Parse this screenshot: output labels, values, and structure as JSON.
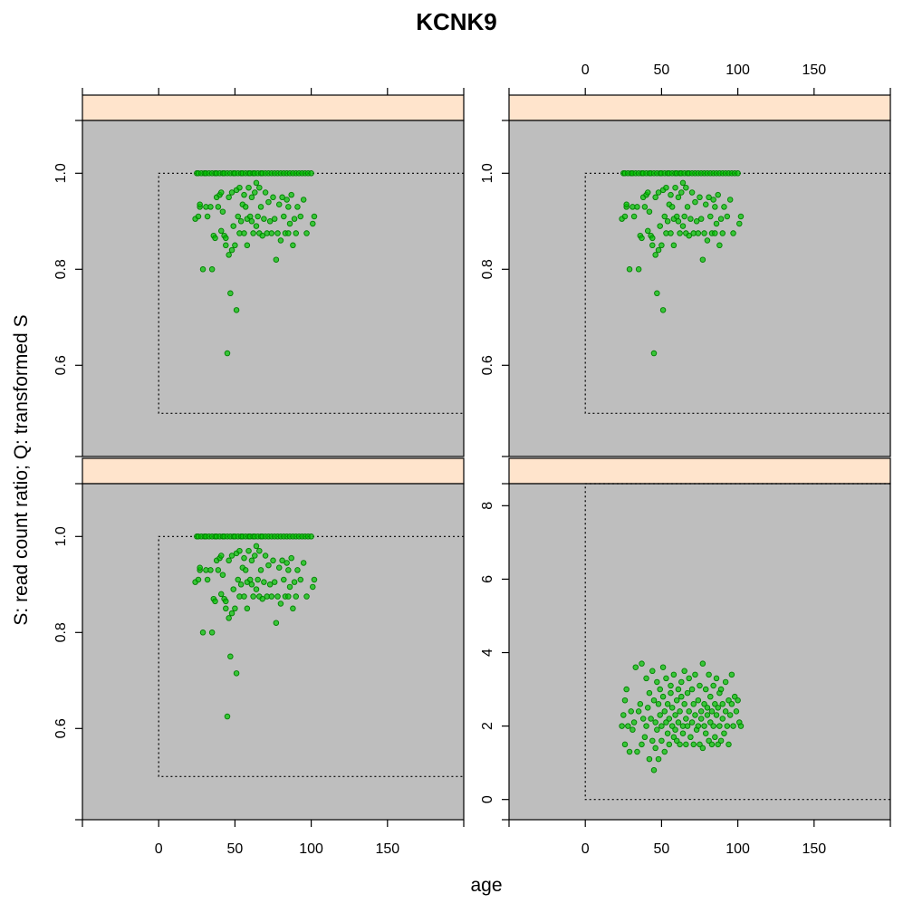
{
  "chart_data": {
    "type": "scatter",
    "title": "KCNK9",
    "xlabel": "age",
    "ylabel": "S: read count ratio;  Q: transformed S",
    "layout": "2x2 lattice",
    "xlim": [
      -50,
      200
    ],
    "x_ticks": [
      "0",
      "50",
      "100",
      "150"
    ],
    "strip_color": "#ffe4cc",
    "panel_background": "#bebebe",
    "point_color": "#00c800",
    "point_edge_color": "#008000",
    "grid": false,
    "reference_box": "dotted",
    "panels": [
      {
        "position": "top-left",
        "ylim": [
          0.41,
          1.11
        ],
        "y_ticks": [
          "0.6",
          "0.8",
          "1.0"
        ],
        "ref_box": {
          "x": [
            0,
            200
          ],
          "y": [
            0.5,
            1.0
          ]
        },
        "points": [
          [
            24,
            0.905
          ],
          [
            25,
            1.0
          ],
          [
            26,
            1.0
          ],
          [
            26,
            0.91
          ],
          [
            27,
            0.93
          ],
          [
            27,
            0.935
          ],
          [
            28,
            1.0
          ],
          [
            29,
            0.8
          ],
          [
            30,
            1.0
          ],
          [
            31,
            1.0
          ],
          [
            31,
            0.93
          ],
          [
            32,
            0.91
          ],
          [
            33,
            1.0
          ],
          [
            34,
            0.93
          ],
          [
            35,
            0.8
          ],
          [
            35,
            1.0
          ],
          [
            36,
            0.87
          ],
          [
            37,
            0.865
          ],
          [
            37,
            1.0
          ],
          [
            38,
            0.95
          ],
          [
            38,
            1.0
          ],
          [
            39,
            0.93
          ],
          [
            40,
            1.0
          ],
          [
            40,
            0.955
          ],
          [
            41,
            0.96
          ],
          [
            41,
            0.88
          ],
          [
            42,
            1.0
          ],
          [
            42,
            0.92
          ],
          [
            43,
            0.87
          ],
          [
            43,
            1.0
          ],
          [
            44,
            0.85
          ],
          [
            44,
            0.865
          ],
          [
            45,
            1.0
          ],
          [
            45,
            0.625
          ],
          [
            46,
            0.95
          ],
          [
            46,
            0.83
          ],
          [
            47,
            0.75
          ],
          [
            47,
            1.0
          ],
          [
            48,
            0.84
          ],
          [
            48,
            0.96
          ],
          [
            49,
            1.0
          ],
          [
            49,
            0.89
          ],
          [
            50,
            0.85
          ],
          [
            50,
            1.0
          ],
          [
            51,
            0.715
          ],
          [
            51,
            0.965
          ],
          [
            52,
            0.91
          ],
          [
            52,
            1.0
          ],
          [
            53,
            0.97
          ],
          [
            53,
            0.875
          ],
          [
            54,
            1.0
          ],
          [
            54,
            0.9
          ],
          [
            55,
            0.935
          ],
          [
            55,
            1.0
          ],
          [
            56,
            0.875
          ],
          [
            56,
            0.955
          ],
          [
            57,
            1.0
          ],
          [
            57,
            0.93
          ],
          [
            58,
            0.85
          ],
          [
            58,
            0.905
          ],
          [
            59,
            1.0
          ],
          [
            59,
            0.97
          ],
          [
            60,
            0.91
          ],
          [
            60,
            1.0
          ],
          [
            61,
            0.9
          ],
          [
            61,
            0.95
          ],
          [
            62,
            1.0
          ],
          [
            62,
            0.875
          ],
          [
            63,
            0.96
          ],
          [
            63,
            1.0
          ],
          [
            64,
            0.98
          ],
          [
            64,
            0.89
          ],
          [
            65,
            1.0
          ],
          [
            65,
            0.91
          ],
          [
            66,
            0.875
          ],
          [
            66,
            0.97
          ],
          [
            67,
            1.0
          ],
          [
            67,
            0.93
          ],
          [
            68,
            0.87
          ],
          [
            68,
            1.0
          ],
          [
            69,
            0.905
          ],
          [
            70,
            1.0
          ],
          [
            70,
            0.96
          ],
          [
            71,
            0.875
          ],
          [
            72,
            1.0
          ],
          [
            72,
            0.94
          ],
          [
            73,
            0.9
          ],
          [
            74,
            1.0
          ],
          [
            74,
            0.875
          ],
          [
            75,
            0.95
          ],
          [
            76,
            1.0
          ],
          [
            76,
            0.905
          ],
          [
            77,
            0.82
          ],
          [
            78,
            1.0
          ],
          [
            78,
            0.875
          ],
          [
            79,
            0.935
          ],
          [
            80,
            1.0
          ],
          [
            80,
            0.86
          ],
          [
            81,
            0.95
          ],
          [
            82,
            1.0
          ],
          [
            82,
            0.91
          ],
          [
            83,
            0.875
          ],
          [
            84,
            1.0
          ],
          [
            84,
            0.945
          ],
          [
            85,
            0.93
          ],
          [
            85,
            0.875
          ],
          [
            86,
            1.0
          ],
          [
            86,
            0.895
          ],
          [
            87,
            0.955
          ],
          [
            88,
            1.0
          ],
          [
            88,
            0.85
          ],
          [
            89,
            0.905
          ],
          [
            90,
            1.0
          ],
          [
            90,
            0.875
          ],
          [
            91,
            0.93
          ],
          [
            92,
            1.0
          ],
          [
            93,
            0.91
          ],
          [
            94,
            1.0
          ],
          [
            95,
            0.945
          ],
          [
            96,
            1.0
          ],
          [
            97,
            0.875
          ],
          [
            98,
            1.0
          ],
          [
            100,
            1.0
          ],
          [
            101,
            0.895
          ],
          [
            102,
            0.91
          ]
        ]
      },
      {
        "position": "top-right",
        "ylim": [
          0.41,
          1.11
        ],
        "y_ticks": [
          "0.6",
          "0.8",
          "1.0"
        ],
        "ref_box": {
          "x": [
            0,
            200
          ],
          "y": [
            0.5,
            1.0
          ]
        },
        "points": "same-as-panel-1"
      },
      {
        "position": "bottom-left",
        "ylim": [
          0.41,
          1.11
        ],
        "y_ticks": [
          "0.6",
          "0.8",
          "1.0"
        ],
        "ref_box": {
          "x": [
            0,
            200
          ],
          "y": [
            0.5,
            1.0
          ]
        },
        "points": "same-as-panel-1"
      },
      {
        "position": "bottom-right",
        "ylim": [
          -0.55,
          8.6
        ],
        "y_ticks": [
          "0",
          "2",
          "4",
          "6",
          "8"
        ],
        "ref_box": {
          "x": [
            0,
            200
          ],
          "y": [
            0,
            8.6
          ]
        },
        "points": [
          [
            24,
            2.0
          ],
          [
            25,
            2.3
          ],
          [
            26,
            2.7
          ],
          [
            26,
            1.5
          ],
          [
            27,
            3.0
          ],
          [
            28,
            2.0
          ],
          [
            29,
            1.3
          ],
          [
            30,
            2.4
          ],
          [
            31,
            1.9
          ],
          [
            32,
            2.1
          ],
          [
            33,
            3.6
          ],
          [
            34,
            1.3
          ],
          [
            35,
            2.4
          ],
          [
            36,
            2.6
          ],
          [
            37,
            1.5
          ],
          [
            37,
            3.7
          ],
          [
            38,
            2.2
          ],
          [
            39,
            1.7
          ],
          [
            40,
            3.3
          ],
          [
            40,
            2.0
          ],
          [
            41,
            2.5
          ],
          [
            42,
            1.1
          ],
          [
            42,
            2.9
          ],
          [
            43,
            2.2
          ],
          [
            44,
            1.6
          ],
          [
            44,
            3.5
          ],
          [
            45,
            0.8
          ],
          [
            45,
            2.7
          ],
          [
            46,
            2.1
          ],
          [
            46,
            1.4
          ],
          [
            47,
            3.2
          ],
          [
            47,
            1.9
          ],
          [
            48,
            2.6
          ],
          [
            48,
            1.1
          ],
          [
            49,
            2.3
          ],
          [
            49,
            3.0
          ],
          [
            50,
            1.6
          ],
          [
            50,
            2.0
          ],
          [
            51,
            2.8
          ],
          [
            51,
            3.6
          ],
          [
            52,
            1.3
          ],
          [
            52,
            2.4
          ],
          [
            53,
            2.1
          ],
          [
            53,
            3.3
          ],
          [
            54,
            1.8
          ],
          [
            54,
            2.6
          ],
          [
            55,
            2.2
          ],
          [
            55,
            1.5
          ],
          [
            56,
            3.1
          ],
          [
            56,
            2.9
          ],
          [
            57,
            2.0
          ],
          [
            57,
            2.5
          ],
          [
            58,
            1.7
          ],
          [
            58,
            3.4
          ],
          [
            59,
            2.3
          ],
          [
            59,
            1.9
          ],
          [
            60,
            2.7
          ],
          [
            60,
            1.6
          ],
          [
            61,
            2.1
          ],
          [
            61,
            3.0
          ],
          [
            62,
            2.4
          ],
          [
            62,
            1.5
          ],
          [
            63,
            2.8
          ],
          [
            63,
            3.2
          ],
          [
            64,
            2.0
          ],
          [
            64,
            1.8
          ],
          [
            65,
            2.6
          ],
          [
            65,
            3.5
          ],
          [
            66,
            2.2
          ],
          [
            66,
            1.5
          ],
          [
            67,
            2.9
          ],
          [
            67,
            2.0
          ],
          [
            68,
            3.3
          ],
          [
            68,
            2.4
          ],
          [
            69,
            1.7
          ],
          [
            70,
            2.1
          ],
          [
            70,
            3.0
          ],
          [
            71,
            2.6
          ],
          [
            71,
            1.5
          ],
          [
            72,
            2.3
          ],
          [
            72,
            3.4
          ],
          [
            73,
            1.9
          ],
          [
            74,
            2.7
          ],
          [
            74,
            2.0
          ],
          [
            75,
            3.1
          ],
          [
            75,
            1.5
          ],
          [
            76,
            2.4
          ],
          [
            76,
            2.2
          ],
          [
            77,
            1.4
          ],
          [
            77,
            3.7
          ],
          [
            78,
            2.6
          ],
          [
            78,
            2.0
          ],
          [
            79,
            3.0
          ],
          [
            79,
            1.8
          ],
          [
            80,
            2.3
          ],
          [
            80,
            2.5
          ],
          [
            81,
            1.6
          ],
          [
            81,
            3.4
          ],
          [
            82,
            2.1
          ],
          [
            82,
            2.8
          ],
          [
            83,
            1.5
          ],
          [
            83,
            2.4
          ],
          [
            84,
            3.1
          ],
          [
            84,
            2.0
          ],
          [
            85,
            2.6
          ],
          [
            85,
            1.7
          ],
          [
            86,
            2.3
          ],
          [
            86,
            3.3
          ],
          [
            87,
            1.5
          ],
          [
            87,
            2.5
          ],
          [
            88,
            2.9
          ],
          [
            88,
            2.0
          ],
          [
            89,
            1.6
          ],
          [
            89,
            3.0
          ],
          [
            90,
            2.2
          ],
          [
            90,
            2.6
          ],
          [
            91,
            1.8
          ],
          [
            92,
            2.4
          ],
          [
            92,
            3.2
          ],
          [
            93,
            2.0
          ],
          [
            94,
            2.7
          ],
          [
            94,
            1.5
          ],
          [
            95,
            2.3
          ],
          [
            96,
            3.4
          ],
          [
            96,
            2.6
          ],
          [
            97,
            2.0
          ],
          [
            98,
            2.8
          ],
          [
            99,
            2.4
          ],
          [
            100,
            2.7
          ],
          [
            101,
            2.1
          ],
          [
            102,
            2.0
          ]
        ]
      }
    ]
  }
}
